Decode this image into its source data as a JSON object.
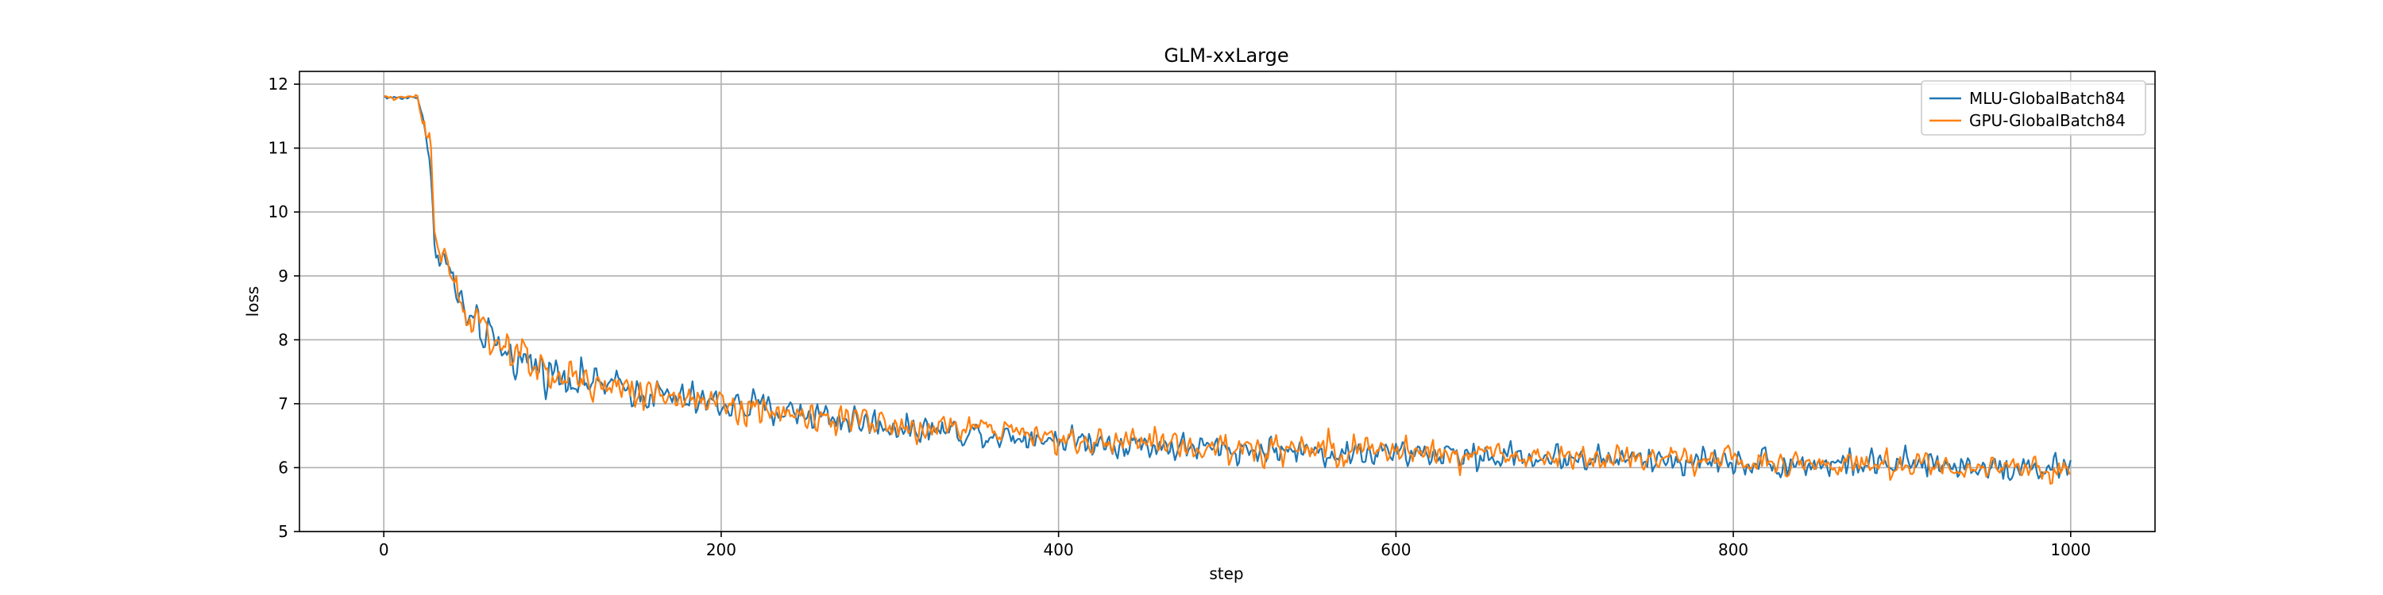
{
  "chart_data": {
    "type": "line",
    "title": "GLM-xxLarge",
    "xlabel": "step",
    "ylabel": "loss",
    "xlim": [
      -50,
      1050
    ],
    "ylim": [
      5,
      12.2
    ],
    "xticks": [
      0,
      200,
      400,
      600,
      800,
      1000
    ],
    "yticks": [
      5,
      6,
      7,
      8,
      9,
      10,
      11,
      12
    ],
    "grid": true,
    "legend_position": "top-right",
    "series": [
      {
        "name": "MLU-GlobalBatch84",
        "color": "#1f77b4",
        "x": [
          0,
          10,
          20,
          25,
          28,
          30,
          35,
          40,
          45,
          50,
          60,
          70,
          80,
          90,
          100,
          120,
          140,
          160,
          180,
          200,
          250,
          300,
          350,
          400,
          450,
          500,
          550,
          600,
          650,
          700,
          750,
          800,
          850,
          900,
          950,
          1000
        ],
        "y": [
          11.8,
          11.78,
          11.8,
          11.3,
          10.4,
          9.5,
          9.3,
          9.0,
          8.6,
          8.3,
          8.05,
          7.85,
          7.7,
          7.6,
          7.5,
          7.35,
          7.25,
          7.15,
          7.05,
          7.0,
          6.85,
          6.65,
          6.55,
          6.45,
          6.35,
          6.28,
          6.25,
          6.22,
          6.18,
          6.15,
          6.12,
          6.1,
          6.06,
          6.04,
          6.02,
          6.0
        ]
      },
      {
        "name": "GPU-GlobalBatch84",
        "color": "#ff7f0e",
        "x": [
          0,
          10,
          20,
          25,
          28,
          30,
          35,
          40,
          45,
          50,
          60,
          70,
          80,
          90,
          100,
          120,
          140,
          160,
          180,
          200,
          250,
          300,
          350,
          400,
          450,
          500,
          550,
          600,
          650,
          700,
          750,
          800,
          850,
          900,
          950,
          1000
        ],
        "y": [
          11.8,
          11.77,
          11.82,
          11.1,
          10.9,
          9.6,
          9.35,
          9.05,
          8.7,
          8.35,
          8.1,
          7.9,
          7.75,
          7.62,
          7.52,
          7.38,
          7.27,
          7.17,
          7.08,
          7.02,
          6.87,
          6.68,
          6.57,
          6.47,
          6.37,
          6.3,
          6.26,
          6.23,
          6.19,
          6.16,
          6.13,
          6.11,
          6.07,
          6.05,
          6.03,
          6.01
        ]
      }
    ]
  }
}
